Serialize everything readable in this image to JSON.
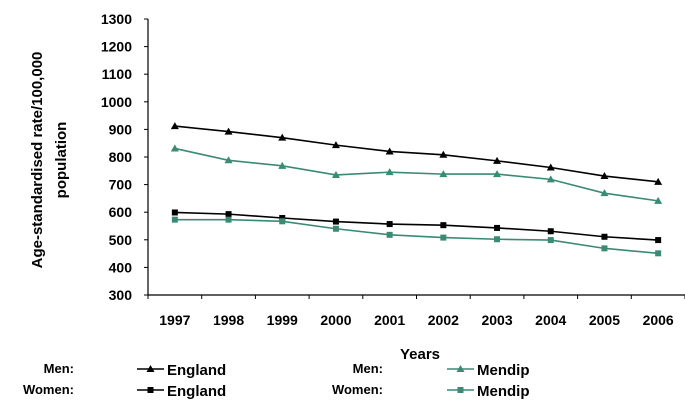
{
  "chart_data": {
    "type": "line",
    "xlabel": "Years",
    "ylabel_lines": [
      "Age-standardised rate/100,000",
      "population"
    ],
    "ylim": [
      300,
      1300
    ],
    "yticks": [
      300,
      400,
      500,
      600,
      700,
      800,
      900,
      1000,
      1100,
      1200,
      1300
    ],
    "categories": [
      "1997",
      "1998",
      "1999",
      "2000",
      "2001",
      "2002",
      "2003",
      "2004",
      "2005",
      "2006"
    ],
    "series": [
      {
        "name": "England",
        "group": "Men:",
        "color": "#000000",
        "marker": "triangle",
        "values": [
          912,
          892,
          870,
          843,
          820,
          808,
          786,
          762,
          731,
          710
        ]
      },
      {
        "name": "Mendip",
        "group": "Men:",
        "color": "#3a8a75",
        "marker": "triangle",
        "values": [
          831,
          788,
          768,
          735,
          745,
          738,
          738,
          719,
          669,
          641
        ]
      },
      {
        "name": "England",
        "group": "Women:",
        "color": "#000000",
        "marker": "square",
        "values": [
          599,
          593,
          579,
          566,
          557,
          553,
          543,
          531,
          511,
          499
        ]
      },
      {
        "name": "Mendip",
        "group": "Women:",
        "color": "#3a8a75",
        "marker": "square",
        "values": [
          573,
          573,
          567,
          540,
          518,
          508,
          502,
          499,
          469,
          451
        ]
      }
    ],
    "legend": "bottom",
    "grid": false
  }
}
